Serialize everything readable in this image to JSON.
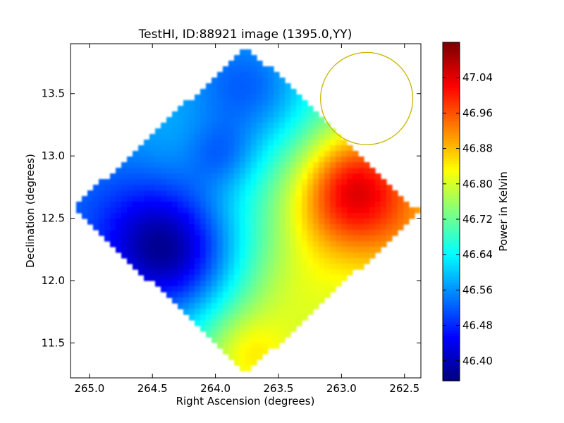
{
  "chart_data": {
    "type": "heatmap",
    "title": "TestHI, ID:88921 image (1395.0,YY)",
    "xlabel": "Right Ascension (degrees)",
    "ylabel": "Declination (degrees)",
    "xlim": [
      265.15,
      262.37
    ],
    "ylim": [
      11.22,
      13.9
    ],
    "x_ticks": [
      265.0,
      264.5,
      264.0,
      263.5,
      263.0,
      262.5
    ],
    "x_tick_labels": [
      "265.0",
      "264.5",
      "264.0",
      "263.5",
      "263.0",
      "262.5"
    ],
    "y_ticks": [
      11.5,
      12.0,
      12.5,
      13.0,
      13.5
    ],
    "y_tick_labels": [
      "11.5",
      "12.0",
      "12.5",
      "13.0",
      "13.5"
    ],
    "colorbar": {
      "label": "Power in Kelvin",
      "colormap": "jet",
      "range": [
        46.355,
        47.12
      ],
      "ticks": [
        46.4,
        46.48,
        46.56,
        46.64,
        46.72,
        46.8,
        46.88,
        46.96,
        47.04
      ],
      "tick_labels": [
        "46.40",
        "46.48",
        "46.56",
        "46.64",
        "46.72",
        "46.80",
        "46.88",
        "46.96",
        "47.04"
      ]
    },
    "field": {
      "shape": "diamond",
      "vertices": [
        [
          263.75,
          13.88
        ],
        [
          262.38,
          12.55
        ],
        [
          263.75,
          11.26
        ],
        [
          265.13,
          12.58
        ]
      ],
      "blobs": [
        {
          "ra": 264.35,
          "dec": 12.2,
          "sigma": 0.35,
          "amplitude": -0.2
        },
        {
          "ra": 264.55,
          "dec": 12.45,
          "sigma": 0.4,
          "amplitude": -0.08
        },
        {
          "ra": 263.7,
          "dec": 13.55,
          "sigma": 0.35,
          "amplitude": -0.13
        },
        {
          "ra": 263.95,
          "dec": 13.0,
          "sigma": 0.2,
          "amplitude": -0.08
        },
        {
          "ra": 262.9,
          "dec": 12.85,
          "sigma": 0.28,
          "amplitude": 0.15
        },
        {
          "ra": 262.7,
          "dec": 12.55,
          "sigma": 0.35,
          "amplitude": 0.12
        },
        {
          "ra": 263.1,
          "dec": 12.55,
          "sigma": 0.3,
          "amplitude": 0.1
        },
        {
          "ra": 263.75,
          "dec": 11.4,
          "sigma": 0.25,
          "amplitude": 0.12
        },
        {
          "ra": 263.4,
          "dec": 11.9,
          "sigma": 0.3,
          "amplitude": 0.06
        }
      ],
      "baseline": 46.68,
      "gradient_ra": -0.09,
      "gradient_dec": -0.03
    },
    "overlay_circle": {
      "ra": 262.8,
      "dec": 13.46,
      "radius_deg": 0.37,
      "color": "#c8b400"
    },
    "grid": false,
    "legend": "none"
  }
}
